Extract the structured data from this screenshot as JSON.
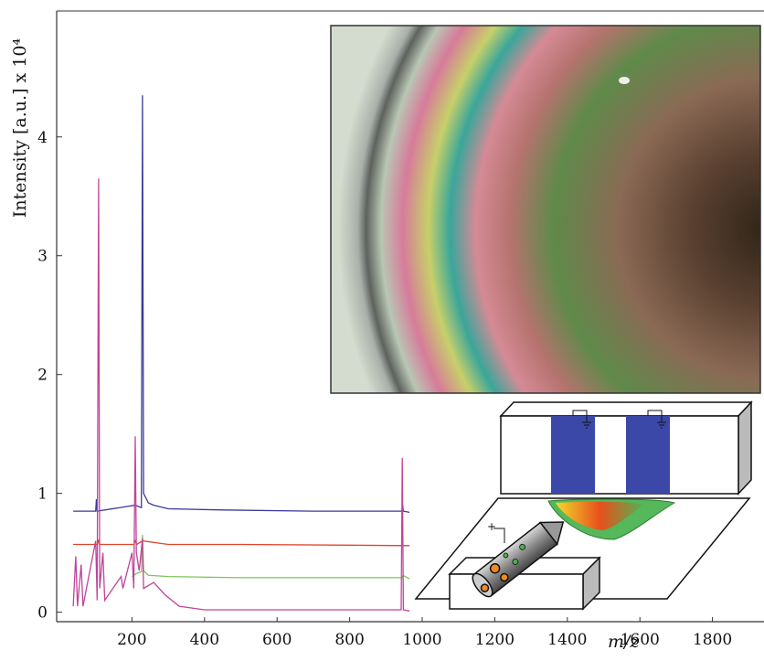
{
  "chart_data": {
    "type": "line",
    "y_label": "Intensity [a.u.] x 10⁴",
    "x_label": "m/z",
    "xlim": [
      0,
      1940
    ],
    "ylim": [
      -0.08,
      5.06
    ],
    "xticks": [
      200,
      400,
      600,
      800,
      1000,
      1200,
      1400,
      1600,
      1800
    ],
    "yticks": [
      0,
      1,
      2,
      3,
      4
    ],
    "series": [
      {
        "color": "#3a3a9a",
        "x": [
          38,
          100,
          102,
          104,
          209,
          226,
          229,
          232,
          245,
          260,
          300,
          450,
          700,
          945,
          946,
          948,
          965
        ],
        "values": [
          0.85,
          0.85,
          0.95,
          0.85,
          0.9,
          0.88,
          4.35,
          1.0,
          0.92,
          0.9,
          0.87,
          0.86,
          0.85,
          0.85,
          0.9,
          0.85,
          0.84
        ]
      },
      {
        "color": "#e0442a",
        "x": [
          38,
          105,
          108,
          111,
          205,
          209,
          213,
          229,
          300,
          500,
          965
        ],
        "values": [
          0.57,
          0.57,
          0.61,
          0.57,
          0.57,
          0.6,
          0.57,
          0.6,
          0.57,
          0.57,
          0.56
        ]
      },
      {
        "color": "#7fc45a",
        "x": [
          200,
          215,
          226,
          229,
          232,
          245,
          300,
          500,
          945,
          947,
          965
        ],
        "values": [
          0.3,
          0.33,
          0.34,
          0.65,
          0.35,
          0.31,
          0.3,
          0.29,
          0.29,
          0.31,
          0.28
        ]
      },
      {
        "color": "#c0449a",
        "x": [
          38,
          45,
          50,
          60,
          65,
          100,
          104,
          108,
          111,
          120,
          125,
          170,
          175,
          200,
          205,
          209,
          212,
          220,
          229,
          232,
          260,
          290,
          330,
          400,
          942,
          945,
          948,
          965
        ],
        "values": [
          0.05,
          0.47,
          0.05,
          0.4,
          0.05,
          0.6,
          0.1,
          3.65,
          0.2,
          0.5,
          0.1,
          0.3,
          0.2,
          0.5,
          0.2,
          1.48,
          0.5,
          0.35,
          0.62,
          0.2,
          0.25,
          0.15,
          0.05,
          0.02,
          0.02,
          1.3,
          0.02,
          0.01
        ]
      }
    ]
  },
  "schematic_label": "+"
}
